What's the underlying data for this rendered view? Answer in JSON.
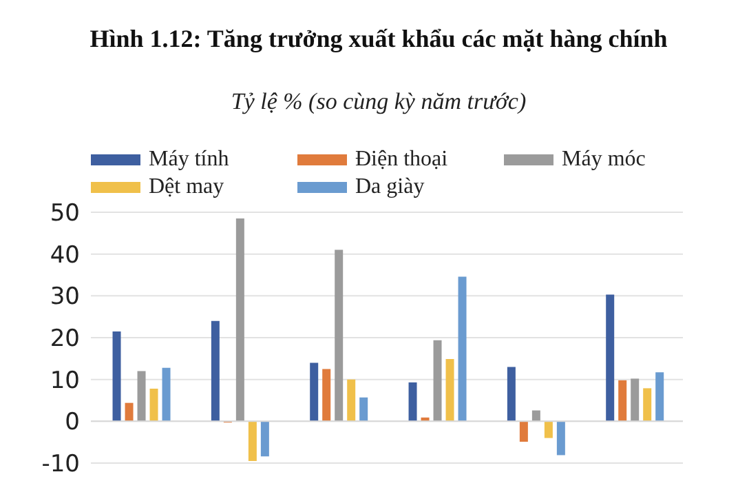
{
  "chart_data": {
    "type": "bar",
    "title": "Hình 1.12: Tăng trưởng xuất khẩu các mặt hàng chính",
    "subtitle": "Tỷ lệ % (so cùng kỳ năm trước)",
    "categories": [
      null,
      null,
      null,
      null,
      null,
      null
    ],
    "series": [
      {
        "name": "Máy tính",
        "color": "#3e5fa0",
        "values": [
          21.5,
          24,
          14,
          9.3,
          13,
          30.3
        ]
      },
      {
        "name": "Điện thoại",
        "color": "#e07b3c",
        "values": [
          4.4,
          -0.3,
          12.5,
          0.9,
          -4.9,
          9.8
        ]
      },
      {
        "name": "Máy móc",
        "color": "#9b9b9b",
        "values": [
          12,
          48.5,
          41,
          19.4,
          2.6,
          10.2
        ]
      },
      {
        "name": "Dệt may",
        "color": "#f0c04a",
        "values": [
          7.8,
          -9.5,
          10,
          14.9,
          -4,
          7.9
        ]
      },
      {
        "name": "Da giày",
        "color": "#6a9bd0",
        "values": [
          12.8,
          -8.4,
          5.7,
          34.6,
          -8.1,
          11.7
        ]
      }
    ],
    "ylim": [
      -10,
      50
    ],
    "yticks": [
      -10,
      0,
      10,
      20,
      30,
      40,
      50
    ],
    "grid": "y",
    "legend": "top"
  }
}
